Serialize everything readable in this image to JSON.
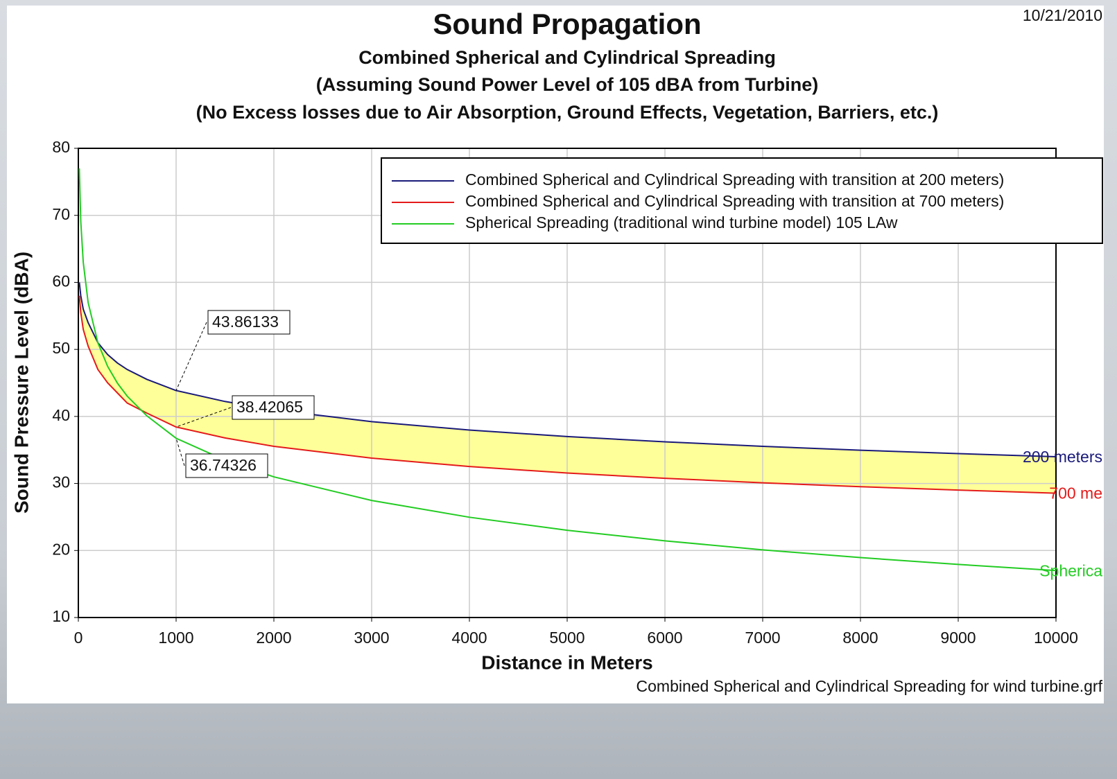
{
  "chart_data": {
    "type": "line",
    "title": "Sound Propagation",
    "subtitles": [
      "Combined Spherical and Cylindrical Spreading",
      "(Assuming Sound Power Level of 105 dBA from Turbine)",
      "(No Excess losses due to Air Absorption, Ground Effects, Vegetation, Barriers, etc.)"
    ],
    "date": "10/21/2010",
    "footer": "Combined Spherical and Cylindrical Spreading for wind turbine.grf",
    "x_label": "Distance in Meters",
    "y_label": "Sound Pressure Level (dBA)",
    "x": [
      10,
      25,
      50,
      100,
      200,
      300,
      400,
      500,
      700,
      1000,
      1500,
      2000,
      3000,
      4000,
      5000,
      6000,
      7000,
      8000,
      9000,
      10000
    ],
    "series": [
      {
        "name": "Combined Spherical and Cylindrical Spreading with transition at 200 meters)",
        "end_label": "200 meters",
        "color": "#1a1a7a",
        "values": [
          60,
          58,
          56,
          54,
          51,
          49.22,
          47.97,
          47.0,
          45.54,
          43.86133,
          42.23,
          40.98,
          39.22,
          37.97,
          37.0,
          36.21,
          35.54,
          34.96,
          34.45,
          33.99
        ]
      },
      {
        "name": "Combined Spherical and Cylindrical Spreading with transition at 700 meters)",
        "end_label": "700 me",
        "color": "#e41a1a",
        "values": [
          58,
          55.5,
          53,
          50.5,
          47,
          45,
          43.5,
          42,
          40.5,
          38.42065,
          36.79,
          35.54,
          33.78,
          32.53,
          31.56,
          30.77,
          30.1,
          29.52,
          29.01,
          28.55
        ]
      },
      {
        "name": "Spherical Spreading (traditional wind turbine model) 105 LAw",
        "end_label": "Spherica",
        "color": "#22cc22",
        "values": [
          77,
          69.04,
          63.02,
          57,
          50.98,
          47.46,
          44.96,
          43.02,
          40.1,
          36.74326,
          33.48,
          30.98,
          27.46,
          24.96,
          23.02,
          21.44,
          20.1,
          18.94,
          17.92,
          17
        ]
      }
    ],
    "fill_between": [
      0,
      1
    ],
    "fill_color": "#ffff99",
    "annotations": [
      "43.86133",
      "38.42065",
      "36.74326"
    ],
    "xlim": [
      0,
      10000
    ],
    "xticks": [
      0,
      1000,
      2000,
      3000,
      4000,
      5000,
      6000,
      7000,
      8000,
      9000,
      10000
    ],
    "ylim": [
      10,
      80
    ],
    "yticks": [
      10,
      20,
      30,
      40,
      50,
      60,
      70,
      80
    ],
    "grid": true,
    "legend": "upper right"
  }
}
